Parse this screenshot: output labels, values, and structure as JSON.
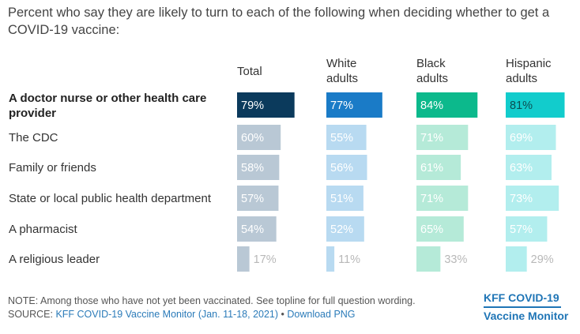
{
  "title": "Percent who say they are likely to turn to each of the following when deciding whether to get a COVID-19 vaccine:",
  "chart_data": {
    "type": "bar",
    "orientation": "horizontal",
    "grouping": "small-multiples",
    "value_suffix": "%",
    "xlim": [
      0,
      100
    ],
    "grid": false,
    "categories": [
      "A doctor nurse or other health care provider",
      "The CDC",
      "Family or friends",
      "State or local public health department",
      "A pharmacist",
      "A religious leader"
    ],
    "highlight_category_index": 0,
    "series": [
      {
        "name": "Total",
        "values": [
          79,
          60,
          58,
          57,
          54,
          17
        ],
        "color": "#0b3a5c",
        "muted_color": "#b9c8d5"
      },
      {
        "name": "White adults",
        "values": [
          77,
          55,
          56,
          51,
          52,
          11
        ],
        "color": "#1a7bc7",
        "muted_color": "#b8daf1"
      },
      {
        "name": "Black adults",
        "values": [
          84,
          71,
          61,
          71,
          65,
          33
        ],
        "color": "#0cb98c",
        "muted_color": "#b5ead8"
      },
      {
        "name": "Hispanic adults",
        "values": [
          81,
          69,
          63,
          73,
          57,
          29
        ],
        "color": "#12cccc",
        "muted_color": "#b2eeee"
      }
    ]
  },
  "footer": {
    "note": "NOTE: Among those who have not yet been vaccinated. See topline for full question wording.",
    "source_prefix": "SOURCE: ",
    "source_link": "KFF COVID-19 Vaccine Monitor (Jan. 11-18, 2021)",
    "separator": " • ",
    "download_link": "Download PNG"
  },
  "brand": {
    "line1": "KFF COVID-19",
    "line2": "Vaccine Monitor"
  }
}
